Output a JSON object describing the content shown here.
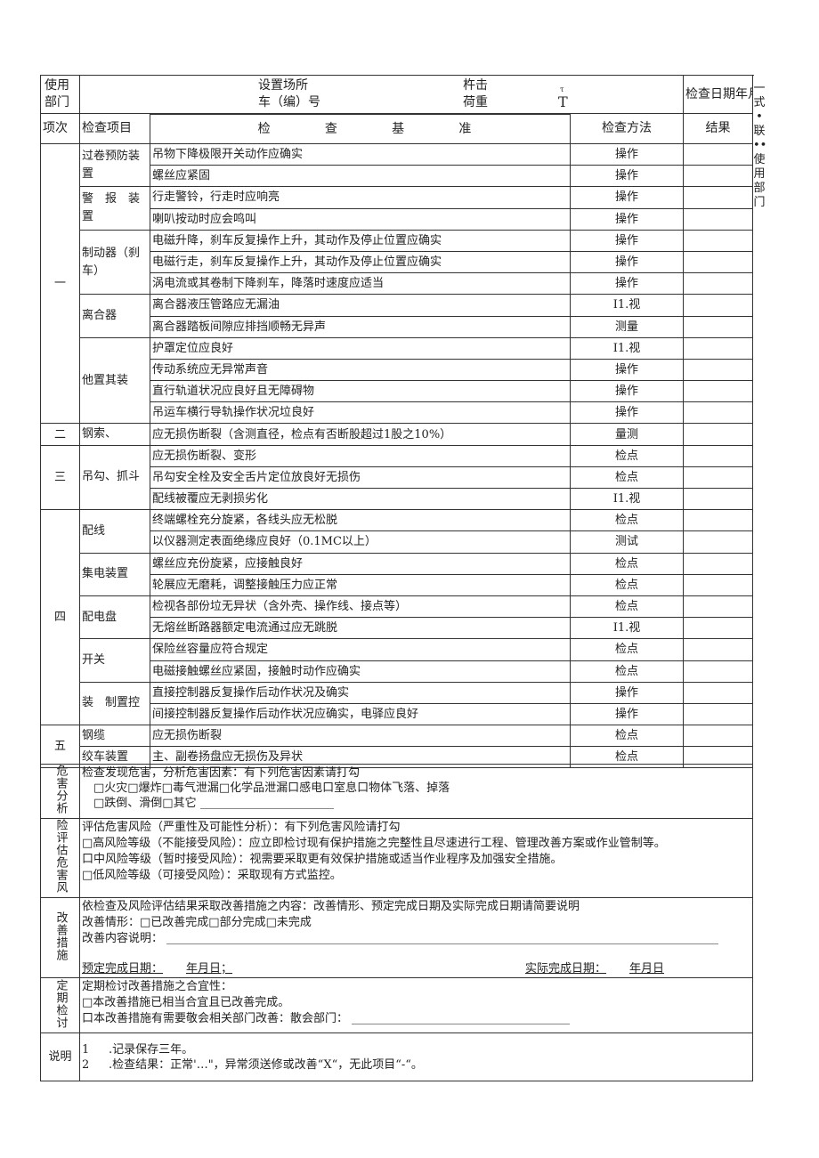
{
  "header": {
    "dept_label": "使用部门",
    "location_label": "设置场所",
    "vehicle_label": "车（编）号",
    "model_label": "杵击",
    "load_label": "荷重",
    "load_unit_small": "τ",
    "load_unit": "T",
    "date_label": "检查日期年月日"
  },
  "columns": {
    "no": "项次",
    "item": "检查项目",
    "criteria": [
      "检",
      "查",
      "基",
      "准"
    ],
    "method": "检查方法",
    "result": "结果"
  },
  "side_note": "一式•联••使用部门",
  "groups": [
    {
      "no": "一",
      "items": [
        {
          "name": "过卷预防装置",
          "rows": [
            [
              "吊物下降极限开关动作应确实",
              "操作"
            ],
            [
              "螺丝应紧固",
              "操作"
            ]
          ]
        },
        {
          "name": "警　报　装　置",
          "rows": [
            [
              "行走警铃，行走时应响亮",
              "操作"
            ],
            [
              "喇叭按动时应会鸣叫",
              "操作"
            ]
          ]
        },
        {
          "name": "制动器（刹车）",
          "rows": [
            [
              "电磁升降，刹车反复操作上升，其动作及停止位置应确实",
              "操作"
            ],
            [
              "电磁行走，刹车反复操作上升，其动作及停止位置应确实",
              "操作"
            ],
            [
              "涡电流或其卷制下降刹车，降落时速度应适当",
              "操作"
            ]
          ]
        },
        {
          "name": "离合器",
          "rows": [
            [
              "离合器液压管路应无漏油",
              "I1.视"
            ],
            [
              "离合器踏板间隙应排挡顺畅无异声",
              "测量"
            ]
          ]
        },
        {
          "name": "他置其装",
          "rows": [
            [
              "护罩定位应良好",
              "I1.视"
            ],
            [
              "传动系统应无异常声音",
              "操作"
            ],
            [
              "直行轨道状况应良好且无障碍物",
              "操作"
            ],
            [
              "吊运车横行导轨操作状况垃良好",
              "操作"
            ]
          ]
        }
      ]
    },
    {
      "no": "二",
      "items": [
        {
          "name": "钢索、",
          "rows": [
            [
              "应无损伤断裂（含测直径，检点有否断股超过1股之10%）",
              "量测"
            ]
          ]
        }
      ]
    },
    {
      "no": "三",
      "items": [
        {
          "name": "吊勾、抓斗",
          "rows": [
            [
              "应无损伤断裂、变形",
              "检点"
            ],
            [
              "吊勾安全栓及安全舌片定位放良好无损伤",
              "检点"
            ],
            [
              "配线被覆应无剥损劣化",
              "I1.视"
            ]
          ]
        }
      ]
    },
    {
      "no": "四",
      "items": [
        {
          "name": "配线",
          "rows": [
            [
              "终端螺栓充分旋紧，各线头应无松脱",
              "检点"
            ],
            [
              "以仪器测定表面绝缘应良好（0.1MC以上）",
              "测试"
            ]
          ]
        },
        {
          "name": "集电装置",
          "rows": [
            [
              "螺丝应充份旋紧，应接触良好",
              "检点"
            ],
            [
              "轮展应无磨耗，调整接触压力应正常",
              "检点"
            ]
          ]
        },
        {
          "name": "配电盘",
          "rows": [
            [
              "检视各部份垃无异状（含外壳、操作线、接点等）",
              "检点"
            ],
            [
              "无熔丝断路器额定电流通过应无跳脱",
              "I1.视"
            ]
          ]
        },
        {
          "name": "开关",
          "rows": [
            [
              "保险丝容量应符合规定",
              "检点"
            ],
            [
              "电磁接触螺丝应紧固，接触时动作应确实",
              "检点"
            ]
          ]
        },
        {
          "name": "装　制置控",
          "rows": [
            [
              "直接控制器反复操作后动作状况及确实",
              "操作"
            ],
            [
              "间接控制器反复操作后动作状况应确实，电驿应良好",
              "操作"
            ]
          ]
        }
      ]
    },
    {
      "no": "五",
      "items": [
        {
          "name": "钢缆",
          "rows": [
            [
              "应无损伤断裂",
              "检点"
            ]
          ]
        },
        {
          "name": "绞车装置",
          "rows": [
            [
              "主、副卷扬盘应无损伤及异状",
              "检点"
            ]
          ]
        }
      ]
    }
  ],
  "hazard": {
    "label": "危害分析",
    "lines": [
      "检查发现危害，分析危害因素：有下列危害因素请打勾",
      "　□火灾□爆炸□毒气泄漏□化学品泄漏口感电口室息口物体飞落、掉落",
      "　□跌倒、滑倒□其它"
    ]
  },
  "risk": {
    "label": "险评估危害风",
    "lines": [
      "评估危害风险（严重性及可能性分析）：有下列危害风险请打勾",
      "□高风险等级（不能接受风险）：应立即检讨现有保护措施之完整性且尽速进行工程、管理改善方案或作业管制等。",
      "口中风险等级（暂时接受风险）：视需要采取更有效保护措施或适当作业程序及加强安全措施。",
      "□低风险等级（可接受风险）：采取现有方式监控。"
    ]
  },
  "improve": {
    "label": "改善措施",
    "lines": [
      "依检查及风险评估结果采取改善措施之内容：改善情形、预定完成日期及实际完成日期请简要说明",
      "改善情形：□已改善完成□部分完成□未完成",
      "改善内容说明："
    ],
    "planned_label": "预定完成日期：",
    "planned_value": "年月日；",
    "actual_label": "实际完成日期：",
    "actual_value": "年月日"
  },
  "review": {
    "label": "定期检讨",
    "lines": [
      "定期检讨改善措施之合宜性：",
      "□本改善措施已相当合宜且已改善完成。",
      "口本改善措施有需要敬会相关部门改善：散会部门："
    ]
  },
  "notes": {
    "label": "说明",
    "items": [
      {
        "num": "1",
        "text": ".记录保存三年。"
      },
      {
        "num": "2",
        "text": ".检查结果：正常'…\"，异常须送修或改善“X“，无此项目“-“。"
      }
    ]
  }
}
